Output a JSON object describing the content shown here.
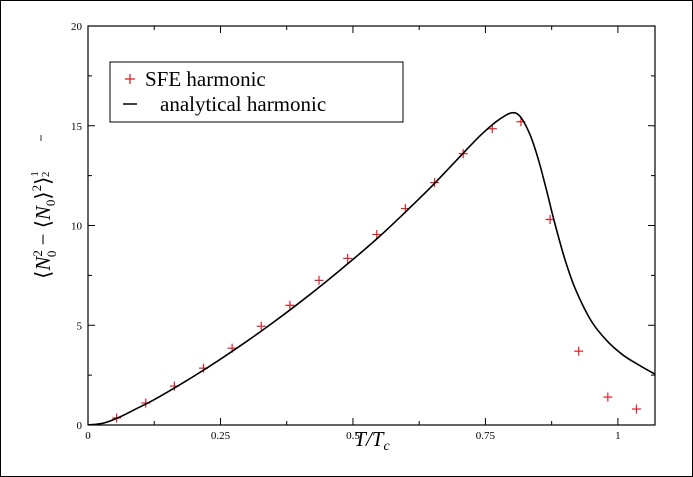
{
  "chart_data": {
    "type": "line",
    "xlabel": "T/T_c",
    "ylabel": "⟨N₀² − ⟨N₀⟩²⟩^½",
    "xlim": [
      0,
      1.07
    ],
    "ylim": [
      0,
      20
    ],
    "x_ticks": [
      0,
      0.25,
      0.5,
      0.75,
      1
    ],
    "x_tick_labels": [
      "0",
      "0.25",
      "0.5",
      "0.75",
      "1"
    ],
    "y_ticks": [
      0,
      5,
      10,
      15,
      20
    ],
    "y_tick_labels": [
      "0",
      "5",
      "10",
      "15",
      "20"
    ],
    "grid": false,
    "legend_position": "top-left",
    "series": [
      {
        "name": "SFE harmonic",
        "kind": "scatter",
        "marker": "+",
        "color": "#e0202a",
        "x": [
          0.054,
          0.109,
          0.163,
          0.218,
          0.272,
          0.327,
          0.381,
          0.436,
          0.49,
          0.545,
          0.599,
          0.654,
          0.708,
          0.763,
          0.817,
          0.872,
          0.926,
          0.981,
          1.035
        ],
        "y": [
          0.35,
          1.1,
          1.95,
          2.85,
          3.85,
          4.95,
          6.0,
          7.25,
          8.35,
          9.55,
          10.85,
          12.15,
          13.6,
          14.85,
          15.2,
          10.3,
          3.7,
          1.4,
          0.8
        ]
      },
      {
        "name": "analytical harmonic",
        "kind": "line",
        "color": "#000000",
        "x": [
          0,
          0.03,
          0.06,
          0.09,
          0.12,
          0.15,
          0.2,
          0.25,
          0.3,
          0.35,
          0.4,
          0.45,
          0.5,
          0.55,
          0.6,
          0.65,
          0.7,
          0.74,
          0.77,
          0.79,
          0.8,
          0.81,
          0.82,
          0.835,
          0.85,
          0.865,
          0.88,
          0.9,
          0.92,
          0.95,
          0.98,
          1.01,
          1.04,
          1.07
        ],
        "y": [
          0,
          0.1,
          0.4,
          0.8,
          1.2,
          1.65,
          2.45,
          3.3,
          4.2,
          5.15,
          6.15,
          7.2,
          8.3,
          9.45,
          10.7,
          12.0,
          13.4,
          14.5,
          15.2,
          15.55,
          15.65,
          15.6,
          15.3,
          14.5,
          13.3,
          11.8,
          10.2,
          8.3,
          6.8,
          5.2,
          4.2,
          3.5,
          3.0,
          2.55
        ]
      }
    ]
  }
}
